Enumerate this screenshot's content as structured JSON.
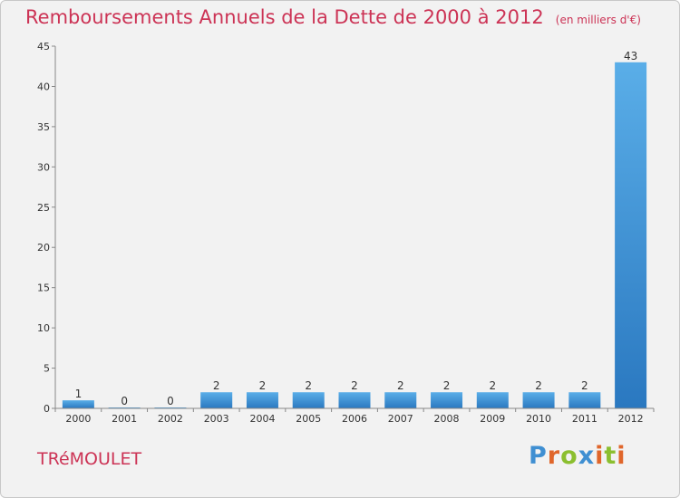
{
  "chart_data": {
    "type": "bar",
    "title": "Remboursements Annuels de la Dette de 2000 à 2012",
    "unit_label": "(en milliers d'€)",
    "categories": [
      "2000",
      "2001",
      "2002",
      "2003",
      "2004",
      "2005",
      "2006",
      "2007",
      "2008",
      "2009",
      "2010",
      "2011",
      "2012"
    ],
    "values": [
      1,
      0,
      0,
      2,
      2,
      2,
      2,
      2,
      2,
      2,
      2,
      2,
      43
    ],
    "value_labels": [
      "1",
      "0",
      "0",
      "2",
      "2",
      "2",
      "2",
      "2",
      "2",
      "2",
      "2",
      "2",
      "43"
    ],
    "ylim": [
      0,
      45
    ],
    "yticks": [
      0,
      5,
      10,
      15,
      20,
      25,
      30,
      35,
      40,
      45
    ],
    "xlabel": "",
    "ylabel": "",
    "bar_color": "#3a8fd8",
    "bar_color_light": "#5aaee8",
    "title_color": "#cc3355"
  },
  "footer": {
    "location": "TRéMOULET",
    "brand_letters": [
      {
        "ch": "P",
        "color": "#3f8fd2"
      },
      {
        "ch": "r",
        "color": "#e0662b"
      },
      {
        "ch": "o",
        "color": "#8bbf2f"
      },
      {
        "ch": "x",
        "color": "#3f8fd2"
      },
      {
        "ch": "i",
        "color": "#e0662b"
      },
      {
        "ch": "t",
        "color": "#8bbf2f"
      },
      {
        "ch": "i",
        "color": "#e0662b"
      }
    ]
  }
}
